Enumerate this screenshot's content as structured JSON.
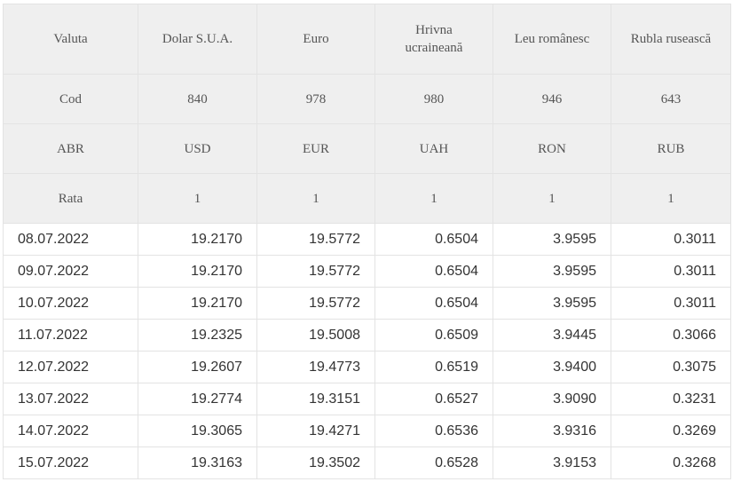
{
  "header": {
    "valuta_label": "Valuta",
    "cod_label": "Cod",
    "abr_label": "ABR",
    "rata_label": "Rata",
    "currencies": [
      {
        "name": "Dolar S.U.A.",
        "code": "840",
        "abr": "USD",
        "rate": "1"
      },
      {
        "name": "Euro",
        "code": "978",
        "abr": "EUR",
        "rate": "1"
      },
      {
        "name": "Hrivna ucraineană",
        "code": "980",
        "abr": "UAH",
        "rate": "1"
      },
      {
        "name": "Leu românesc",
        "code": "946",
        "abr": "RON",
        "rate": "1"
      },
      {
        "name": "Rubla rusească",
        "code": "643",
        "abr": "RUB",
        "rate": "1"
      }
    ]
  },
  "rows": [
    {
      "date": "08.07.2022",
      "values": [
        "19.2170",
        "19.5772",
        "0.6504",
        "3.9595",
        "0.3011"
      ]
    },
    {
      "date": "09.07.2022",
      "values": [
        "19.2170",
        "19.5772",
        "0.6504",
        "3.9595",
        "0.3011"
      ]
    },
    {
      "date": "10.07.2022",
      "values": [
        "19.2170",
        "19.5772",
        "0.6504",
        "3.9595",
        "0.3011"
      ]
    },
    {
      "date": "11.07.2022",
      "values": [
        "19.2325",
        "19.5008",
        "0.6509",
        "3.9445",
        "0.3066"
      ]
    },
    {
      "date": "12.07.2022",
      "values": [
        "19.2607",
        "19.4773",
        "0.6519",
        "3.9400",
        "0.3075"
      ]
    },
    {
      "date": "13.07.2022",
      "values": [
        "19.2774",
        "19.3151",
        "0.6527",
        "3.9090",
        "0.3231"
      ]
    },
    {
      "date": "14.07.2022",
      "values": [
        "19.3065",
        "19.4271",
        "0.6536",
        "3.9316",
        "0.3269"
      ]
    },
    {
      "date": "15.07.2022",
      "values": [
        "19.3163",
        "19.3502",
        "0.6528",
        "3.9153",
        "0.3268"
      ]
    }
  ]
}
